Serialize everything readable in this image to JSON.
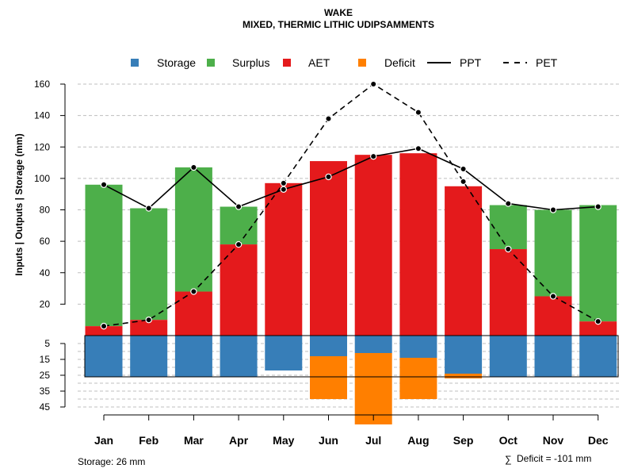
{
  "chart_data": {
    "type": "bar",
    "title": "WAKE",
    "subtitle": "MIXED, THERMIC LITHIC UDIPSAMMENTS",
    "ylabel": "Inputs | Outputs | Storage    (mm)",
    "categories": [
      "Jan",
      "Feb",
      "Mar",
      "Apr",
      "May",
      "Jun",
      "Jul",
      "Aug",
      "Sep",
      "Oct",
      "Nov",
      "Dec"
    ],
    "ylim_upper": [
      0,
      160
    ],
    "ylim_lower": [
      0,
      45
    ],
    "upper_ticks": [
      "20",
      "40",
      "60",
      "80",
      "100",
      "120",
      "140",
      "160"
    ],
    "lower_ticks": [
      "5",
      "15",
      "25",
      "35",
      "45"
    ],
    "storage_capacity": 26,
    "series": [
      {
        "name": "Storage",
        "color": "#377eb8",
        "values": [
          26,
          26,
          26,
          26,
          22,
          13,
          11,
          14,
          24,
          26,
          26,
          26
        ]
      },
      {
        "name": "Surplus",
        "color": "#4daf4a",
        "values": [
          90,
          71,
          79,
          24,
          0,
          0,
          0,
          0,
          0,
          28,
          55,
          74
        ]
      },
      {
        "name": "AET",
        "color": "#e41a1c",
        "values": [
          6,
          10,
          28,
          58,
          97,
          111,
          115,
          116,
          95,
          55,
          25,
          9
        ]
      },
      {
        "name": "Deficit",
        "color": "#ff7f00",
        "values": [
          0,
          0,
          0,
          0,
          0,
          27,
          45,
          26,
          3,
          0,
          0,
          0
        ]
      },
      {
        "name": "PPT",
        "color": "#000000",
        "values": [
          96,
          81,
          107,
          82,
          93,
          101,
          114,
          119,
          106,
          84,
          80,
          82
        ]
      },
      {
        "name": "PET",
        "color": "#000000",
        "values": [
          6,
          10,
          28,
          58,
          97,
          138,
          160,
          142,
          98,
          55,
          25,
          9
        ]
      }
    ],
    "legend": [
      "Storage",
      "Surplus",
      "AET",
      "Deficit",
      "PPT",
      "PET"
    ],
    "storage_note": "Storage: 26 mm",
    "deficit_note": "Deficit = -101 mm",
    "sum_symbol": "∑"
  }
}
